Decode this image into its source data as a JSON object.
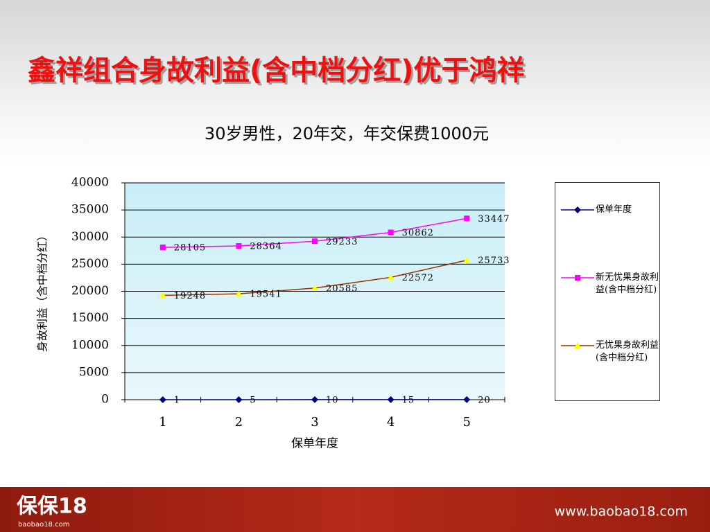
{
  "slide": {
    "title": "鑫祥组合身故利益(含中档分红)优于鸿祥",
    "subtitle": "30岁男性，20年交，年交保费1000元",
    "logo": "保保18",
    "logo_sub": "baobao18.com",
    "url": "www.baobao18.com"
  },
  "chart_data": {
    "type": "line",
    "xlabel": "保单年度",
    "ylabel": "身故利益（含中档分红）",
    "categories": [
      1,
      2,
      3,
      4,
      5
    ],
    "ylim": [
      0,
      40000
    ],
    "yticks": [
      0,
      5000,
      10000,
      15000,
      20000,
      25000,
      30000,
      35000,
      40000
    ],
    "grid": true,
    "series": [
      {
        "name": "保单年度",
        "color": "#000080",
        "marker": "diamond",
        "values": [
          1,
          5,
          10,
          15,
          20
        ]
      },
      {
        "name": "新无忧果身故利益(含中档分红)",
        "color": "#ff00ff",
        "marker": "square",
        "values": [
          28105,
          28364,
          29233,
          30862,
          33447
        ]
      },
      {
        "name": "无忧果身故利益(含中档分红)",
        "color": "#993300",
        "marker_color": "#ffff00",
        "marker": "triangle",
        "values": [
          19248,
          19541,
          20585,
          22572,
          25733
        ]
      }
    ]
  }
}
